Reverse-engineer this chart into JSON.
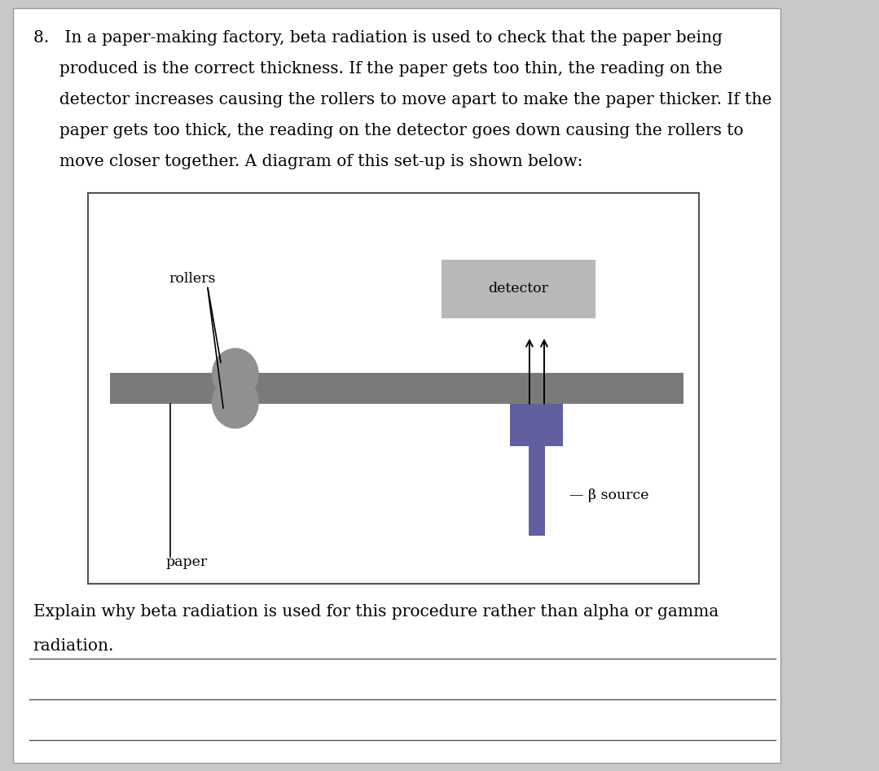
{
  "bg_color": "#c8c8c8",
  "card_bg": "#ffffff",
  "question_text_line1": "8.   In a paper-making factory, beta radiation is used to check that the paper being",
  "question_text_line2": "     produced is the correct thickness. If the paper gets too thin, the reading on the",
  "question_text_line3": "     detector increases causing the rollers to move apart to make the paper thicker. If the",
  "question_text_line4": "     paper gets too thick, the reading on the detector goes down causing the rollers to",
  "question_text_line5": "     move closer together. A diagram of this set-up is shown below:",
  "explain_line1": "Explain why beta radiation is used for this procedure rather than alpha or gamma",
  "explain_line2": "radiation.",
  "paper_color": "#7a7a7a",
  "roller_color": "#909090",
  "detector_color": "#b8b8b8",
  "source_color": "#6060a0",
  "text_color": "#000000",
  "font_size_body": 14.5,
  "font_size_diagram": 12.5
}
